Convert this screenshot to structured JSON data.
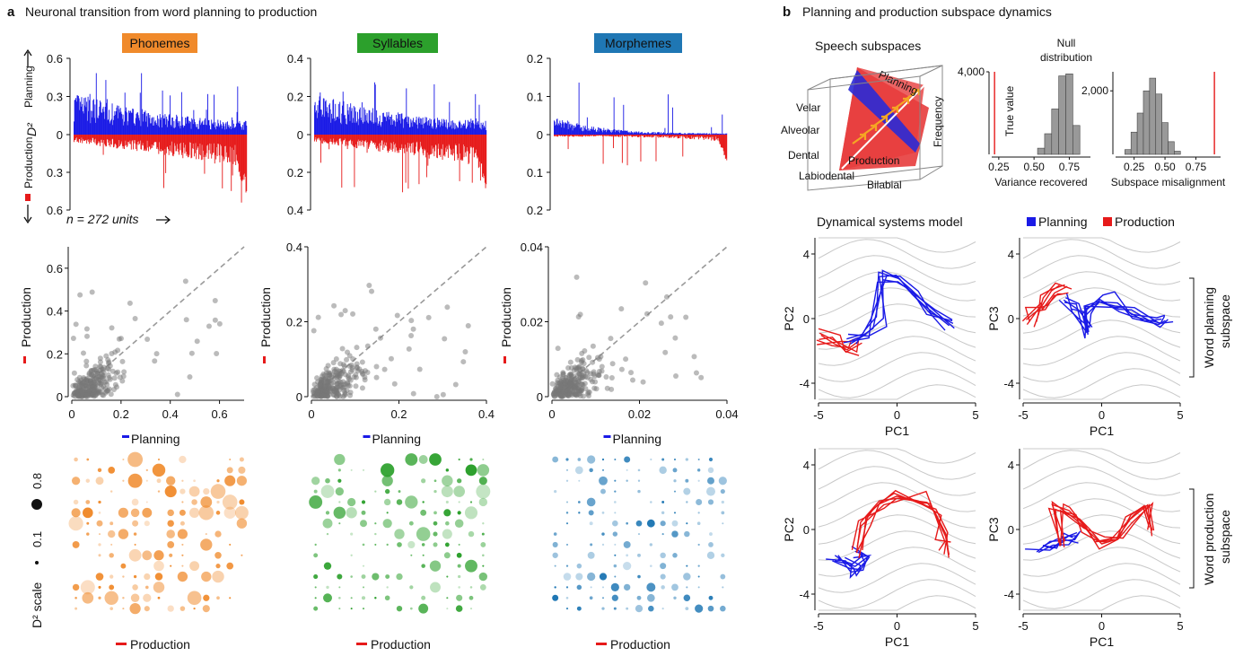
{
  "panel_a": {
    "letter": "a",
    "title": "Neuronal transition from word planning to production",
    "features": [
      {
        "name": "Phonemes",
        "color": "#f08a2b"
      },
      {
        "name": "Syllables",
        "color": "#2ca02c"
      },
      {
        "name": "Morphemes",
        "color": "#1f77b4"
      }
    ],
    "bar_ylabel_top": "Planning",
    "bar_ylabel_mid": "D²",
    "bar_ylabel_bottom": "Production",
    "n_units_label": "n = 272 units",
    "scatter_xlabel": "Planning",
    "scatter_ylabel": "Production",
    "grid_xlabel": "Production",
    "d2_scale_label": "D² scale",
    "d2_scale_small": "0.1",
    "d2_scale_large": "0.8"
  },
  "panel_b": {
    "letter": "b",
    "title": "Planning and production subspace dynamics",
    "subspace_title": "Speech subspaces",
    "plane_planning": "Planning",
    "plane_production": "Production",
    "articulators": [
      "Velar",
      "Alveolar",
      "Dental",
      "Labiodental",
      "Bilabial"
    ],
    "null_title_1": "Null",
    "null_title_2": "distribution",
    "true_value_label": "True value",
    "freq_label": "Frequency",
    "hist1_xlabel": "Variance recovered",
    "hist2_xlabel": "Subspace misalignment",
    "dyn_title": "Dynamical systems model",
    "legend_planning": "Planning",
    "legend_production": "Production",
    "row1_label_1": "Word planning",
    "row1_label_2": "subspace",
    "row2_label_1": "Word production",
    "row2_label_2": "subspace",
    "axis_pc1": "PC1",
    "axis_pc2": "PC2",
    "axis_pc3": "PC3"
  },
  "colors": {
    "planning": "#1a1ae6",
    "production": "#e61a1a",
    "gray": "#7a7a7a"
  },
  "chart_data": [
    {
      "type": "bar",
      "id": "phonemes-d2",
      "title": "Phonemes",
      "ylim_up": [
        0,
        0.6
      ],
      "ylim_down": [
        0,
        0.6
      ],
      "yticks_up": [
        0.6,
        0.3,
        0
      ],
      "yticks_down": [
        0.3,
        0.6
      ],
      "n_units": 272
    },
    {
      "type": "bar",
      "id": "syllables-d2",
      "title": "Syllables",
      "ylim_up": [
        0,
        0.4
      ],
      "ylim_down": [
        0,
        0.4
      ],
      "yticks_up": [
        0.4,
        0.2,
        0
      ],
      "yticks_down": [
        0.2,
        0.4
      ],
      "n_units": 272
    },
    {
      "type": "bar",
      "id": "morphemes-d2",
      "title": "Morphemes",
      "ylim_up": [
        0,
        0.2
      ],
      "ylim_down": [
        0,
        0.2
      ],
      "yticks_up": [
        0.2,
        0.1,
        0
      ],
      "yticks_down": [
        0.1,
        0.2
      ],
      "n_units": 272
    },
    {
      "type": "scatter",
      "id": "phonemes-scatter",
      "xlim": [
        0,
        0.7
      ],
      "ylim": [
        0,
        0.7
      ],
      "xticks": [
        "0",
        "0.2",
        "0.4",
        "0.6"
      ],
      "yticks": [
        "0",
        "0.2",
        "0.4",
        "0.6"
      ],
      "xlabel": "Planning",
      "ylabel": "Production",
      "diagonal": true
    },
    {
      "type": "scatter",
      "id": "syllables-scatter",
      "xlim": [
        0,
        0.4
      ],
      "ylim": [
        0,
        0.4
      ],
      "xticks": [
        "0",
        "0.2",
        "0.4"
      ],
      "yticks": [
        "0",
        "0.2",
        "0.4"
      ],
      "xlabel": "Planning",
      "ylabel": "Production",
      "diagonal": true
    },
    {
      "type": "scatter",
      "id": "morphemes-scatter",
      "xlim": [
        0,
        0.05
      ],
      "ylim": [
        0,
        0.05
      ],
      "xticks": [
        "0",
        "0.02",
        "0.04"
      ],
      "yticks": [
        "0",
        "0.02",
        "0.04"
      ],
      "xlabel": "Planning",
      "ylabel": "Production",
      "diagonal": true
    },
    {
      "type": "bar",
      "id": "variance-hist",
      "xlabel": "Variance recovered",
      "ylabel": "Frequency",
      "xticks": [
        "0.25",
        "0.50",
        "0.75"
      ],
      "yticks": [
        "4,000"
      ],
      "xlim": [
        0.2,
        0.9
      ],
      "ylim": [
        0,
        4000
      ],
      "true_value": 0.22,
      "bins": [
        0.55,
        0.6,
        0.65,
        0.7,
        0.75,
        0.8
      ],
      "counts": [
        300,
        1000,
        2200,
        3800,
        3900,
        1400
      ]
    },
    {
      "type": "bar",
      "id": "misalignment-hist",
      "xlabel": "Subspace misalignment",
      "xticks": [
        "0.25",
        "0.50",
        "0.75"
      ],
      "yticks": [
        "2,000"
      ],
      "xlim": [
        0.1,
        0.95
      ],
      "ylim": [
        0,
        2600
      ],
      "true_value": 0.9,
      "bins": [
        0.2,
        0.25,
        0.3,
        0.35,
        0.4,
        0.45,
        0.5,
        0.55,
        0.6
      ],
      "counts": [
        150,
        700,
        1300,
        2000,
        2400,
        1900,
        1000,
        400,
        100
      ]
    },
    {
      "type": "line",
      "id": "dyn-planning-pc12",
      "xlabel": "PC1",
      "ylabel": "PC2",
      "xlim": [
        -5,
        5
      ],
      "ylim": [
        -5,
        5
      ],
      "xticks": [
        "-5",
        "0",
        "5"
      ],
      "yticks": [
        "4",
        "0",
        "-4"
      ]
    },
    {
      "type": "line",
      "id": "dyn-planning-pc13",
      "xlabel": "PC1",
      "ylabel": "PC3",
      "xlim": [
        -5,
        5
      ],
      "ylim": [
        -5,
        5
      ],
      "xticks": [
        "-5",
        "0",
        "5"
      ],
      "yticks": [
        "4",
        "0",
        "-4"
      ]
    },
    {
      "type": "line",
      "id": "dyn-production-pc12",
      "xlabel": "PC1",
      "ylabel": "PC2",
      "xlim": [
        -5,
        5
      ],
      "ylim": [
        -5,
        5
      ],
      "xticks": [
        "-5",
        "0",
        "5"
      ],
      "yticks": [
        "4",
        "0",
        "-4"
      ]
    },
    {
      "type": "line",
      "id": "dyn-production-pc13",
      "xlabel": "PC1",
      "ylabel": "PC3",
      "xlim": [
        -5,
        5
      ],
      "ylim": [
        -5,
        5
      ],
      "xticks": [
        "-5",
        "0",
        "5"
      ],
      "yticks": [
        "4",
        "0",
        "-4"
      ]
    }
  ]
}
